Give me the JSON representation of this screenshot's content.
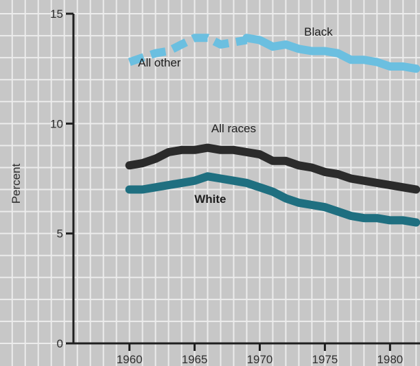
{
  "chart_data": {
    "type": "line",
    "title": "",
    "xlabel": "",
    "ylabel": "Percent",
    "xlim": [
      1955.7,
      1982.3
    ],
    "ylim": [
      0,
      15
    ],
    "x_ticks": [
      "1960",
      "1965",
      "1970",
      "1975",
      "1980"
    ],
    "y_ticks": [
      "0",
      "5",
      "10",
      "15"
    ],
    "grid": true,
    "colors": {
      "background": "#c7c7c7",
      "grid": "#ececec",
      "axis": "#1f1f1f",
      "text": "#2e2e2e"
    },
    "series": [
      {
        "name": "All other",
        "color": "#6bbfe0",
        "dashed": true,
        "label_x": 1962.3,
        "label_y": 12.6,
        "x": [
          1960,
          1961,
          1962,
          1963,
          1964,
          1965,
          1966,
          1967,
          1968,
          1969
        ],
        "y": [
          12.8,
          13.0,
          13.2,
          13.3,
          13.6,
          13.9,
          13.9,
          13.6,
          13.7,
          13.8
        ]
      },
      {
        "name": "Black",
        "color": "#6bbfe0",
        "dashed": false,
        "label_x": 1974.5,
        "label_y": 14.0,
        "x": [
          1969,
          1970,
          1971,
          1972,
          1973,
          1974,
          1975,
          1976,
          1977,
          1978,
          1979,
          1980,
          1981,
          1982
        ],
        "y": [
          13.9,
          13.8,
          13.5,
          13.6,
          13.4,
          13.3,
          13.3,
          13.2,
          12.9,
          12.9,
          12.8,
          12.6,
          12.6,
          12.5
        ]
      },
      {
        "name": "All races",
        "color": "#2b2b2b",
        "dashed": false,
        "label_x": 1968.0,
        "label_y": 9.6,
        "x": [
          1960,
          1961,
          1962,
          1963,
          1964,
          1965,
          1966,
          1967,
          1968,
          1969,
          1970,
          1971,
          1972,
          1973,
          1974,
          1975,
          1976,
          1977,
          1978,
          1979,
          1980,
          1981,
          1982
        ],
        "y": [
          8.1,
          8.2,
          8.4,
          8.7,
          8.8,
          8.8,
          8.9,
          8.8,
          8.8,
          8.7,
          8.6,
          8.3,
          8.3,
          8.1,
          8.0,
          7.8,
          7.7,
          7.5,
          7.4,
          7.3,
          7.2,
          7.1,
          7.0
        ]
      },
      {
        "name": "White",
        "color": "#1f6f80",
        "dashed": false,
        "label_x": 1966.2,
        "label_y": 6.4,
        "bold_label": true,
        "x": [
          1960,
          1961,
          1962,
          1963,
          1964,
          1965,
          1966,
          1967,
          1968,
          1969,
          1970,
          1971,
          1972,
          1973,
          1974,
          1975,
          1976,
          1977,
          1978,
          1979,
          1980,
          1981,
          1982
        ],
        "y": [
          7.0,
          7.0,
          7.1,
          7.2,
          7.3,
          7.4,
          7.6,
          7.5,
          7.4,
          7.3,
          7.1,
          6.9,
          6.6,
          6.4,
          6.3,
          6.2,
          6.0,
          5.8,
          5.7,
          5.7,
          5.6,
          5.6,
          5.5
        ]
      }
    ]
  }
}
